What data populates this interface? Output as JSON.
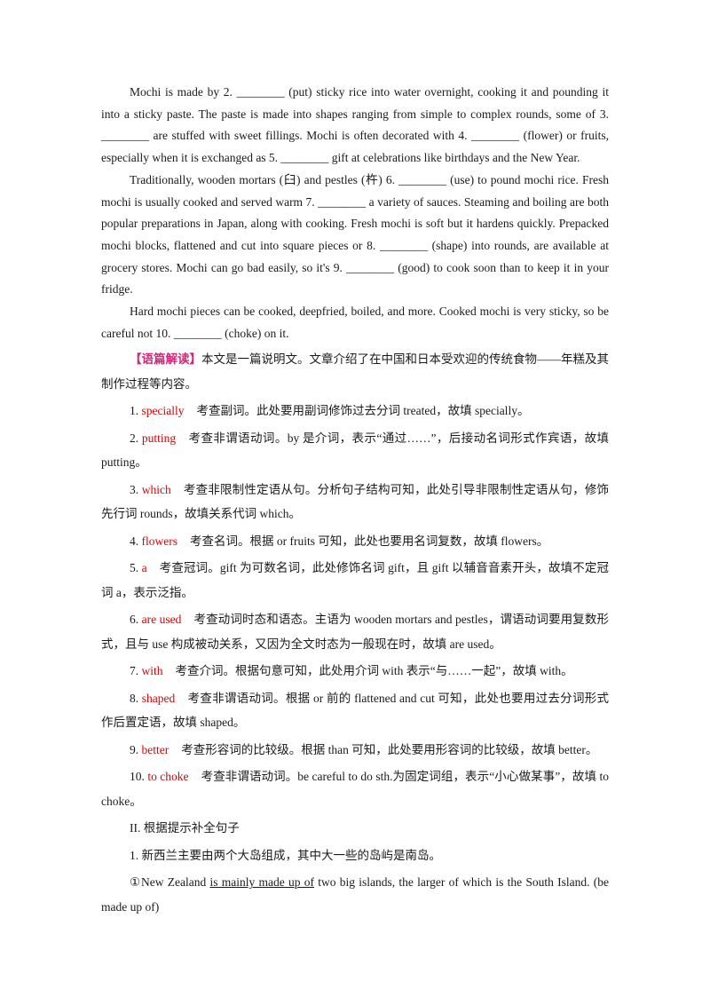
{
  "passage": {
    "p1": "Mochi is made by 2. ________ (put) sticky rice into water overnight, cooking it and pounding it into a sticky paste. The paste is made into shapes ranging from simple to complex rounds, some of 3. ________ are stuffed with sweet fillings. Mochi is often decorated with 4. ________ (flower) or fruits, especially when it is exchanged as 5. ________ gift at celebrations like birthdays and the New Year.",
    "p2": "Traditionally, wooden mortars (臼) and pestles (杵) 6. ________ (use) to pound mochi rice. Fresh mochi is usually cooked and served warm 7. ________ a variety of sauces. Steaming and boiling are both popular preparations in Japan, along with cooking. Fresh mochi is soft but it hardens quickly. Prepacked mochi blocks, flattened and cut into square pieces or 8. ________ (shape) into rounds, are available at grocery stores. Mochi can go bad easily, so it's 9. ________ (good) to cook soon than to keep it in your fridge.",
    "p3": "Hard mochi pieces can be cooked, deepfried, boiled, and more. Cooked mochi is very sticky, so be careful not 10. ________ (choke) on it."
  },
  "analysis": {
    "tag": "【语篇解读】",
    "text": "本文是一篇说明文。文章介绍了在中国和日本受欢迎的传统食物——年糕及其制作过程等内容。"
  },
  "answers": [
    {
      "num": "1.",
      "ans": "specially",
      "exp": "考查副词。此处要用副词修饰过去分词 treated，故填 specially。"
    },
    {
      "num": "2.",
      "ans": "putting",
      "exp": "考查非谓语动词。by 是介词，表示“通过……”，后接动名词形式作宾语，故填 putting。"
    },
    {
      "num": "3.",
      "ans": "which",
      "exp": "考查非限制性定语从句。分析句子结构可知，此处引导非限制性定语从句，修饰先行词 rounds，故填关系代词 which。"
    },
    {
      "num": "4.",
      "ans": "flowers",
      "exp": "考查名词。根据 or fruits 可知，此处也要用名词复数，故填 flowers。"
    },
    {
      "num": "5.",
      "ans": "a",
      "exp": "考查冠词。gift 为可数名词，此处修饰名词 gift，且 gift 以辅音音素开头，故填不定冠词 a，表示泛指。"
    },
    {
      "num": "6.",
      "ans": "are used",
      "exp": "考查动词时态和语态。主语为 wooden mortars and pestles，谓语动词要用复数形式，且与 use 构成被动关系，又因为全文时态为一般现在时，故填 are used。"
    },
    {
      "num": "7.",
      "ans": "with",
      "exp": "考查介词。根据句意可知，此处用介词 with 表示“与……一起”，故填 with。"
    },
    {
      "num": "8.",
      "ans": "shaped",
      "exp": "考查非谓语动词。根据 or 前的 flattened and cut 可知，此处也要用过去分词形式作后置定语，故填 shaped。"
    },
    {
      "num": "9.",
      "ans": "better",
      "exp": "考查形容词的比较级。根据 than 可知，此处要用形容词的比较级，故填 better。"
    },
    {
      "num": "10.",
      "ans": "to choke",
      "exp": "考查非谓语动词。be careful to do sth.为固定词组，表示“小心做某事”，故填 to choke。"
    }
  ],
  "section2": {
    "title": "II. 根据提示补全句子",
    "q1": "1. 新西兰主要由两个大岛组成，其中大一些的岛屿是南岛。",
    "s1_pre": "①New Zealand ",
    "s1_u": "is mainly made up of",
    "s1_post": " two big islands, the larger of which is the South Island. (be made up of)"
  }
}
